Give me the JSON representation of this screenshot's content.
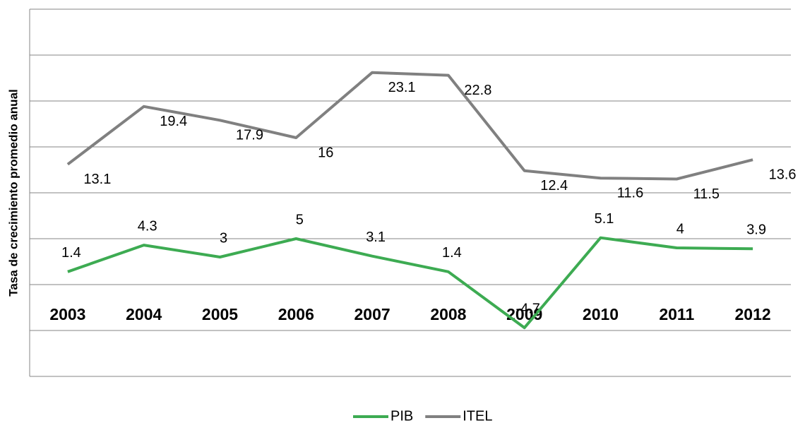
{
  "chart_data": {
    "type": "line",
    "y_label": "Tasa de crecimiento promedio anual",
    "categories": [
      "2003",
      "2004",
      "2005",
      "2006",
      "2007",
      "2008",
      "2009",
      "2010",
      "2011",
      "2012"
    ],
    "series": [
      {
        "name": "PIB",
        "color": "#3dab52",
        "values": [
          1.4,
          4.3,
          3.0,
          5.0,
          3.1,
          1.4,
          -4.7,
          5.1,
          4.0,
          3.9
        ]
      },
      {
        "name": "ITEL",
        "color": "#808080",
        "values": [
          13.1,
          19.4,
          17.9,
          16.0,
          23.1,
          22.8,
          12.4,
          11.6,
          11.5,
          13.6
        ]
      }
    ],
    "ylim": [
      -10,
      30
    ],
    "yticks": [
      -10,
      -5,
      0,
      5,
      10,
      15,
      20,
      25,
      30
    ],
    "grid": true
  }
}
